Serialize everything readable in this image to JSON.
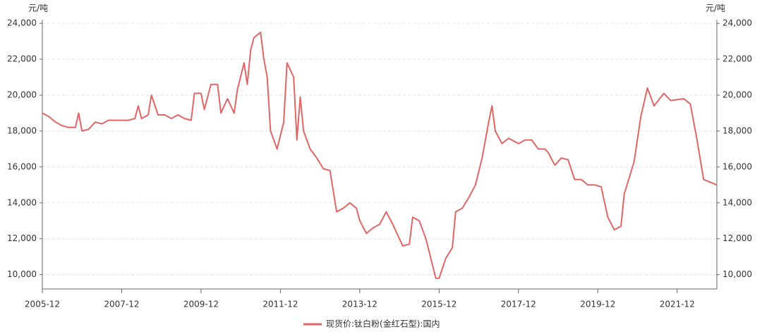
{
  "chart_data": {
    "type": "line",
    "y_label": "元/吨",
    "x": [
      "2005-12",
      "2006-02",
      "2006-04",
      "2006-06",
      "2006-08",
      "2006-10",
      "2006-11",
      "2006-12",
      "2007-02",
      "2007-04",
      "2007-06",
      "2007-08",
      "2007-10",
      "2007-12",
      "2008-02",
      "2008-04",
      "2008-05",
      "2008-06",
      "2008-08",
      "2008-09",
      "2008-11",
      "2009-01",
      "2009-03",
      "2009-05",
      "2009-07",
      "2009-09",
      "2009-10",
      "2009-12",
      "2010-01",
      "2010-03",
      "2010-05",
      "2010-06",
      "2010-08",
      "2010-10",
      "2010-11",
      "2011-01",
      "2011-02",
      "2011-03",
      "2011-04",
      "2011-06",
      "2011-07",
      "2011-08",
      "2011-09",
      "2011-11",
      "2012-01",
      "2012-02",
      "2012-04",
      "2012-05",
      "2012-06",
      "2012-07",
      "2012-09",
      "2012-11",
      "2013-01",
      "2013-03",
      "2013-05",
      "2013-07",
      "2013-09",
      "2013-11",
      "2013-12",
      "2014-02",
      "2014-04",
      "2014-06",
      "2014-08",
      "2014-10",
      "2015-01",
      "2015-03",
      "2015-04",
      "2015-06",
      "2015-08",
      "2015-11",
      "2015-12",
      "2016-02",
      "2016-04",
      "2016-05",
      "2016-07",
      "2016-09",
      "2016-11",
      "2017-01",
      "2017-03",
      "2017-04",
      "2017-05",
      "2017-07",
      "2017-09",
      "2017-12",
      "2018-02",
      "2018-04",
      "2018-06",
      "2018-08",
      "2018-09",
      "2018-11",
      "2019-01",
      "2019-03",
      "2019-05",
      "2019-07",
      "2019-09",
      "2019-11",
      "2020-01",
      "2020-03",
      "2020-05",
      "2020-07",
      "2020-08",
      "2020-11",
      "2021-01",
      "2021-03",
      "2021-05",
      "2021-08",
      "2021-10",
      "2022-02",
      "2022-04",
      "2022-06",
      "2022-08",
      "2022-12"
    ],
    "series": [
      {
        "name": "现货价:钛白粉(金红石型):国内",
        "color": "#e06666",
        "values": [
          19000,
          18800,
          18500,
          18300,
          18200,
          18200,
          19000,
          18000,
          18100,
          18500,
          18400,
          18600,
          18600,
          18600,
          18600,
          18700,
          19400,
          18700,
          18900,
          20000,
          18900,
          18900,
          18700,
          18900,
          18700,
          18600,
          20100,
          20100,
          19200,
          20600,
          20600,
          19000,
          19800,
          19000,
          20300,
          21800,
          20600,
          22500,
          23200,
          23500,
          22000,
          21000,
          18000,
          17000,
          18500,
          21800,
          21000,
          17500,
          19900,
          18000,
          17000,
          16500,
          15900,
          15800,
          13500,
          13700,
          14000,
          13700,
          13000,
          12300,
          12600,
          12800,
          13500,
          12800,
          11600,
          11700,
          13200,
          13000,
          12000,
          9800,
          9800,
          10900,
          11500,
          13500,
          13700,
          14300,
          15000,
          16500,
          18500,
          19400,
          18000,
          17300,
          17600,
          17300,
          17500,
          17500,
          17000,
          17000,
          16800,
          16100,
          16500,
          16400,
          15300,
          15300,
          15000,
          15000,
          14900,
          13200,
          12500,
          12700,
          14500,
          16300,
          18800,
          20400,
          19400,
          20100,
          19700,
          19800,
          19500,
          17500,
          15300,
          15000
        ]
      }
    ],
    "xlim": [
      "2005-12",
      "2022-12"
    ],
    "xticks": [
      "2005-12",
      "2007-12",
      "2009-12",
      "2011-12",
      "2013-12",
      "2015-12",
      "2017-12",
      "2019-12",
      "2021-12"
    ],
    "ylim": [
      9200,
      24200
    ],
    "yticks": [
      {
        "value": 10000,
        "label": "10,000"
      },
      {
        "value": 12000,
        "label": "12,000"
      },
      {
        "value": 14000,
        "label": "14,000"
      },
      {
        "value": 16000,
        "label": "16,000"
      },
      {
        "value": 18000,
        "label": "18,000"
      },
      {
        "value": 20000,
        "label": "20,000"
      },
      {
        "value": 22000,
        "label": "22,000"
      },
      {
        "value": 24000,
        "label": "24,000"
      }
    ],
    "grid": true,
    "legend": "bottom"
  }
}
